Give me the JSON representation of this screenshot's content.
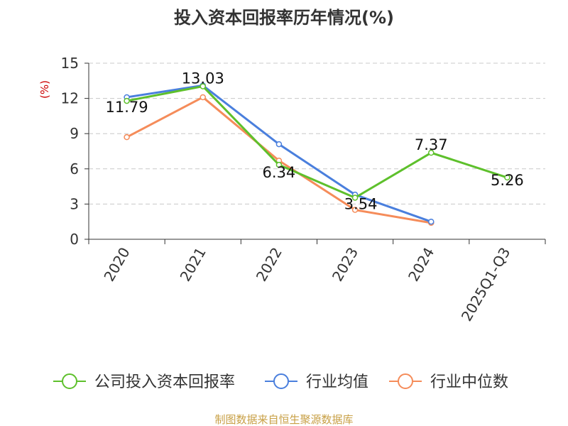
{
  "chart_data": {
    "type": "line",
    "title": "投入资本回报率历年情况(%)",
    "ylabel": "(%)",
    "xlabel": "",
    "categories": [
      "2020",
      "2021",
      "2022",
      "2023",
      "2024",
      "2025Q1-Q3"
    ],
    "ylim": [
      0,
      15
    ],
    "yticks": [
      0,
      3,
      6,
      9,
      12,
      15
    ],
    "grid": true,
    "legend_position": "bottom",
    "series": [
      {
        "name": "公司投入资本回报率",
        "color": "#5ec02c",
        "values": [
          11.79,
          13.03,
          6.34,
          3.54,
          7.37,
          5.26
        ],
        "labels": [
          "11.79",
          "13.03",
          "6.34",
          "3.54",
          "7.37",
          "5.26"
        ]
      },
      {
        "name": "行业均值",
        "color": "#4a7fdd",
        "values": [
          12.1,
          13.1,
          8.1,
          3.8,
          1.5,
          null
        ]
      },
      {
        "name": "行业中位数",
        "color": "#f58c5a",
        "values": [
          8.7,
          12.1,
          6.7,
          2.5,
          1.4,
          null
        ]
      }
    ]
  },
  "source_note": "制图数据来自恒生聚源数据库"
}
